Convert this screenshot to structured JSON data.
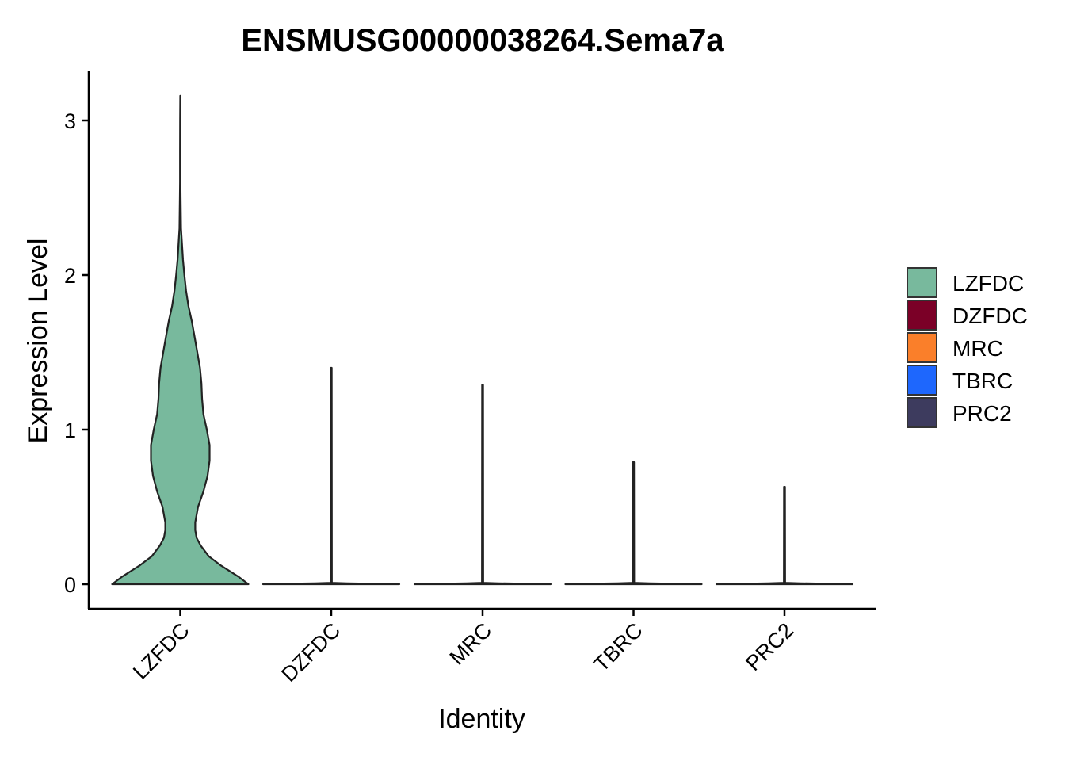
{
  "chart_data": {
    "type": "violin",
    "title": "ENSMUSG00000038264.Sema7a",
    "xlabel": "Identity",
    "ylabel": "Expression Level",
    "ylim": [
      -0.16,
      3.32
    ],
    "yticks": [
      0,
      1,
      2,
      3
    ],
    "ytick_labels": [
      "0",
      "1",
      "2",
      "3"
    ],
    "categories": [
      "LZFDC",
      "DZFDC",
      "MRC",
      "TBRC",
      "PRC2"
    ],
    "colors": [
      "#78B99D",
      "#7B0027",
      "#FA7F2A",
      "#1E67FD",
      "#3D3B5E"
    ],
    "legend_position": "right",
    "grid": false,
    "series": [
      {
        "category": "LZFDC",
        "max": 3.16,
        "density": [
          [
            0.0,
            1.0
          ],
          [
            0.05,
            0.85
          ],
          [
            0.12,
            0.6
          ],
          [
            0.18,
            0.42
          ],
          [
            0.25,
            0.3
          ],
          [
            0.3,
            0.24
          ],
          [
            0.35,
            0.22
          ],
          [
            0.4,
            0.22
          ],
          [
            0.5,
            0.26
          ],
          [
            0.6,
            0.34
          ],
          [
            0.7,
            0.4
          ],
          [
            0.8,
            0.43
          ],
          [
            0.9,
            0.43
          ],
          [
            1.0,
            0.39
          ],
          [
            1.1,
            0.34
          ],
          [
            1.2,
            0.32
          ],
          [
            1.3,
            0.31
          ],
          [
            1.4,
            0.29
          ],
          [
            1.5,
            0.25
          ],
          [
            1.6,
            0.21
          ],
          [
            1.7,
            0.17
          ],
          [
            1.8,
            0.12
          ],
          [
            1.9,
            0.085
          ],
          [
            2.0,
            0.06
          ],
          [
            2.1,
            0.04
          ],
          [
            2.2,
            0.025
          ],
          [
            2.3,
            0.012
          ],
          [
            2.5,
            0.006
          ],
          [
            2.6,
            0.004
          ],
          [
            2.8,
            0.003
          ],
          [
            3.0,
            0.002
          ],
          [
            3.16,
            0.0
          ]
        ]
      },
      {
        "category": "DZFDC",
        "max": 1.4
      },
      {
        "category": "MRC",
        "max": 1.29
      },
      {
        "category": "TBRC",
        "max": 0.79
      },
      {
        "category": "PRC2",
        "max": 0.63
      }
    ]
  }
}
